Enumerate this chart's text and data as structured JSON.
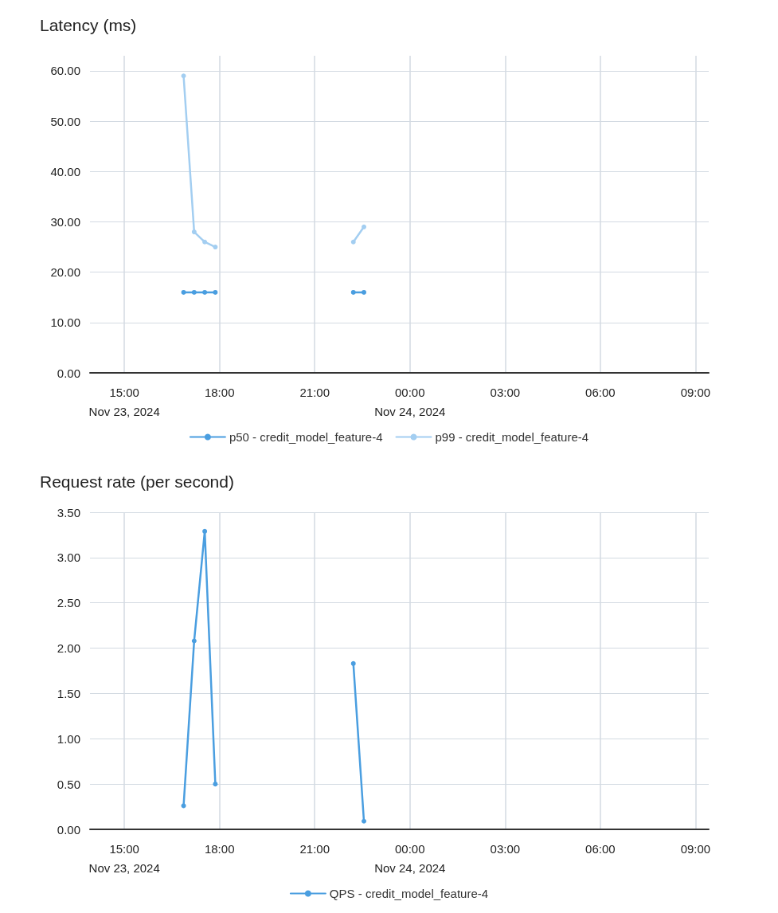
{
  "chart_data": [
    {
      "type": "line",
      "title": "Latency (ms)",
      "x": [
        "2024-11-23T16:52",
        "2024-11-23T17:12",
        "2024-11-23T17:32",
        "2024-11-23T17:52",
        "2024-11-23T20:00",
        "2024-11-23T22:13",
        "2024-11-23T22:33"
      ],
      "series": [
        {
          "name": "p50 - credit_model_feature-4",
          "color": "#4a9ee0",
          "values": [
            16,
            16,
            16,
            16,
            null,
            16,
            16
          ]
        },
        {
          "name": "p99 - credit_model_feature-4",
          "color": "#a3cef1",
          "values": [
            59,
            28,
            26,
            25,
            null,
            26,
            29
          ]
        }
      ],
      "xlim": [
        "2024-11-23T13:55",
        "2024-11-24T09:25"
      ],
      "xticks": [
        {
          "value": "2024-11-23T15:00",
          "label": "15:00\nNov 23, 2024"
        },
        {
          "value": "2024-11-23T18:00",
          "label": "18:00"
        },
        {
          "value": "2024-11-23T21:00",
          "label": "21:00"
        },
        {
          "value": "2024-11-24T00:00",
          "label": "00:00\nNov 24, 2024"
        },
        {
          "value": "2024-11-24T03:00",
          "label": "03:00"
        },
        {
          "value": "2024-11-24T06:00",
          "label": "06:00"
        },
        {
          "value": "2024-11-24T09:00",
          "label": "09:00"
        }
      ],
      "ylim": [
        0,
        63
      ],
      "yticks": [
        {
          "value": 0,
          "label": "0.00"
        },
        {
          "value": 10,
          "label": "10.00"
        },
        {
          "value": 20,
          "label": "20.00"
        },
        {
          "value": 30,
          "label": "30.00"
        },
        {
          "value": 40,
          "label": "40.00"
        },
        {
          "value": 50,
          "label": "50.00"
        },
        {
          "value": 60,
          "label": "60.00"
        }
      ],
      "grid": true,
      "legend": "bottom",
      "marker": "circle",
      "line_style": "solid"
    },
    {
      "type": "line",
      "title": "Request rate (per second)",
      "x": [
        "2024-11-23T16:52",
        "2024-11-23T17:12",
        "2024-11-23T17:32",
        "2024-11-23T17:52",
        "2024-11-23T20:00",
        "2024-11-23T22:13",
        "2024-11-23T22:33"
      ],
      "series": [
        {
          "name": "QPS - credit_model_feature-4",
          "color": "#4a9ee0",
          "values": [
            0.26,
            2.08,
            3.29,
            0.5,
            null,
            1.83,
            0.09
          ]
        }
      ],
      "xlim": [
        "2024-11-23T13:55",
        "2024-11-24T09:25"
      ],
      "xticks": [
        {
          "value": "2024-11-23T15:00",
          "label": "15:00\nNov 23, 2024"
        },
        {
          "value": "2024-11-23T18:00",
          "label": "18:00"
        },
        {
          "value": "2024-11-23T21:00",
          "label": "21:00"
        },
        {
          "value": "2024-11-24T00:00",
          "label": "00:00\nNov 24, 2024"
        },
        {
          "value": "2024-11-24T03:00",
          "label": "03:00"
        },
        {
          "value": "2024-11-24T06:00",
          "label": "06:00"
        },
        {
          "value": "2024-11-24T09:00",
          "label": "09:00"
        }
      ],
      "ylim": [
        0,
        3.5
      ],
      "yticks": [
        {
          "value": 0,
          "label": "0.00"
        },
        {
          "value": 0.5,
          "label": "0.50"
        },
        {
          "value": 1,
          "label": "1.00"
        },
        {
          "value": 1.5,
          "label": "1.50"
        },
        {
          "value": 2,
          "label": "2.00"
        },
        {
          "value": 2.5,
          "label": "2.50"
        },
        {
          "value": 3,
          "label": "3.00"
        },
        {
          "value": 3.5,
          "label": "3.50"
        }
      ],
      "grid": true,
      "legend": "bottom",
      "marker": "circle",
      "line_style": "solid"
    }
  ]
}
